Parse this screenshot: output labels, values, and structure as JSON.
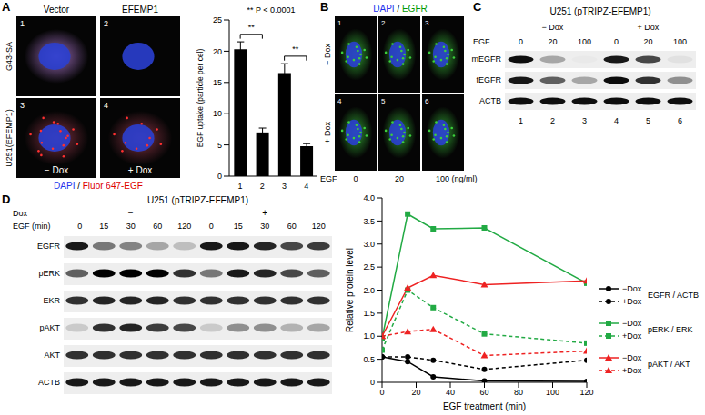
{
  "figure": {
    "A": {
      "label": "A",
      "row_labels": [
        "G43-SA",
        "U251(EFEMP1)"
      ],
      "images": [
        {
          "number": 1,
          "text": "Vector"
        },
        {
          "number": 2,
          "text": "EFEMP1"
        },
        {
          "number": 3,
          "text": "− Dox"
        },
        {
          "number": 4,
          "text": "+ Dox"
        }
      ],
      "stain": {
        "parts": [
          "DAPI",
          " / ",
          "Fluor 647-EGF"
        ],
        "colors": [
          "#2233ee",
          "#000000",
          "#dd0000"
        ]
      },
      "annotation": "** P < 0.0001"
    },
    "B": {
      "label": "B",
      "stain": {
        "parts": [
          "DAPI",
          " / ",
          "EGFR"
        ],
        "colors": [
          "#2233ee",
          "#000000",
          "#009900"
        ]
      },
      "row_labels": [
        "− Dox",
        "+ Dox"
      ],
      "image_numbers": [
        [
          1,
          2,
          3
        ],
        [
          4,
          5,
          6
        ]
      ],
      "treatment": "EGF",
      "doses": [
        0,
        20,
        100
      ],
      "dose_unit": "(ng/ml)"
    },
    "C": {
      "label": "C",
      "title": "U251 (pTRIPZ-EFEMP1)",
      "conditions": [
        "− Dox",
        "+ Dox"
      ],
      "treatment": "EGF",
      "doses": [
        0,
        20,
        100,
        0,
        20,
        100
      ],
      "rows": [
        {
          "name": "mEGFR",
          "bands": [
            0.95,
            0.3,
            0.02,
            0.9,
            0.7,
            0.05
          ]
        },
        {
          "name": "tEGFR",
          "bands": [
            0.9,
            0.6,
            0.3,
            0.95,
            0.8,
            0.4
          ]
        },
        {
          "name": "ACTB",
          "bands": [
            0.95,
            0.95,
            0.95,
            0.95,
            0.95,
            0.95
          ]
        }
      ],
      "lanes": [
        1,
        2,
        3,
        4,
        5,
        6
      ]
    },
    "D": {
      "label": "D",
      "title": "U251 (pTRIPZ-EFEMP1)",
      "condition_label": "Dox",
      "conditions": [
        "−",
        "+"
      ],
      "treatment": "EGF (min)",
      "times": [
        0,
        15,
        30,
        60,
        120,
        0,
        15,
        30,
        60,
        120
      ],
      "rows": [
        {
          "name": "EGFR",
          "bands": [
            0.9,
            0.5,
            0.45,
            0.3,
            0.2,
            0.9,
            0.9,
            0.85,
            0.7,
            0.75
          ]
        },
        {
          "name": "pERK",
          "bands": [
            0.6,
            1.0,
            1.0,
            1.0,
            0.8,
            0.5,
            0.9,
            0.85,
            0.7,
            0.6
          ]
        },
        {
          "name": "EKR",
          "bands": [
            0.8,
            0.85,
            0.85,
            0.85,
            0.8,
            0.8,
            0.8,
            0.8,
            0.8,
            0.8
          ]
        },
        {
          "name": "pAKT",
          "bands": [
            0.15,
            0.8,
            0.85,
            0.75,
            0.7,
            0.15,
            0.4,
            0.4,
            0.25,
            0.3
          ]
        },
        {
          "name": "AKT",
          "bands": [
            0.8,
            0.8,
            0.8,
            0.8,
            0.8,
            0.8,
            0.8,
            0.8,
            0.8,
            0.8
          ]
        },
        {
          "name": "ACTB",
          "bands": [
            0.9,
            0.9,
            0.9,
            0.9,
            0.9,
            0.9,
            0.9,
            0.9,
            0.9,
            0.9
          ]
        }
      ]
    }
  },
  "chart_data": [
    {
      "type": "bar",
      "categories": [
        "1",
        "2",
        "3",
        "4"
      ],
      "values": [
        20.3,
        7.0,
        16.5,
        4.8
      ],
      "errors": [
        1.2,
        0.7,
        1.5,
        0.4
      ],
      "ylabel": "EGF uptake (particle per cel)",
      "ylim": [
        0,
        25
      ],
      "yticks": [
        0,
        5,
        10,
        15,
        20,
        25
      ],
      "color": "#000000",
      "grid": false,
      "significance": [
        {
          "between": [
            "1",
            "2"
          ],
          "label": "**"
        },
        {
          "between": [
            "3",
            "4"
          ],
          "label": "**"
        }
      ]
    },
    {
      "type": "line",
      "xlabel": "EGF treatment (min)",
      "ylabel": "Relative protein level",
      "x": [
        0,
        15,
        30,
        60,
        120
      ],
      "xlim": [
        0,
        120
      ],
      "xticks": [
        0,
        20,
        40,
        60,
        80,
        100,
        120
      ],
      "ylim": [
        0,
        4
      ],
      "yticks": [
        0,
        0.5,
        {
          "value": 1,
          "label": "1.0"
        },
        1.5,
        {
          "value": 2,
          "label": "2.0"
        },
        2.5,
        {
          "value": 3,
          "label": "3.0"
        },
        3.5,
        {
          "value": 4,
          "label": "4.0"
        }
      ],
      "grid": false,
      "legend": "right",
      "series": [
        {
          "name": "−Dox",
          "group": "EGFR / ACTB",
          "color": "#000000",
          "marker": "circle",
          "line_style": "solid",
          "values": [
            0.55,
            0.45,
            0.12,
            0.03,
            0.02
          ]
        },
        {
          "name": "+Dox",
          "group": "EGFR / ACTB",
          "color": "#000000",
          "marker": "circle",
          "line_style": "dashed",
          "values": [
            0.55,
            0.55,
            0.48,
            0.28,
            0.48
          ]
        },
        {
          "name": "−Dox",
          "group": "pERK / ERK",
          "color": "#22aa44",
          "marker": "square",
          "line_style": "solid",
          "values": [
            0.95,
            3.65,
            3.33,
            3.35,
            2.15
          ]
        },
        {
          "name": "+Dox",
          "group": "pERK / ERK",
          "color": "#22aa44",
          "marker": "square",
          "line_style": "dashed",
          "values": [
            0.7,
            2.0,
            1.62,
            1.05,
            0.85
          ]
        },
        {
          "name": "−Dox",
          "group": "pAKT / AKT",
          "color": "#ee2222",
          "marker": "triangle",
          "line_style": "solid",
          "values": [
            1.0,
            2.05,
            2.32,
            2.12,
            2.2
          ]
        },
        {
          "name": "+Dox",
          "group": "pAKT / AKT",
          "color": "#ee2222",
          "marker": "triangle",
          "line_style": "dashed",
          "values": [
            1.0,
            1.1,
            1.15,
            0.58,
            0.68
          ]
        }
      ]
    }
  ]
}
